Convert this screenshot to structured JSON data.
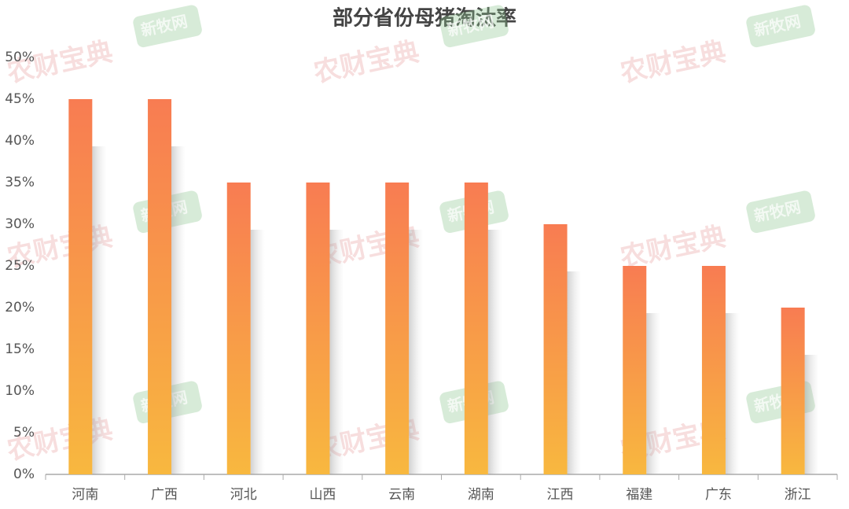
{
  "chart_data": {
    "type": "bar",
    "title": "部分省份母猪淘汰率",
    "categories": [
      "河南",
      "广西",
      "河北",
      "山西",
      "云南",
      "湖南",
      "江西",
      "福建",
      "广东",
      "浙江"
    ],
    "values": [
      45,
      45,
      35,
      35,
      35,
      35,
      30,
      25,
      25,
      20
    ],
    "gradient": [
      "#f87c52",
      "#f8b83f"
    ],
    "ylim": [
      0,
      50
    ],
    "yticks": [
      {
        "value": 0,
        "label": "0%"
      },
      {
        "value": 5,
        "label": "5%"
      },
      {
        "value": 10,
        "label": "10%"
      },
      {
        "value": 15,
        "label": "15%"
      },
      {
        "value": 20,
        "label": "20%"
      },
      {
        "value": 25,
        "label": "25%"
      },
      {
        "value": 30,
        "label": "30%"
      },
      {
        "value": 35,
        "label": "35%"
      },
      {
        "value": 40,
        "label": "40%"
      },
      {
        "value": 45,
        "label": "45%"
      },
      {
        "value": 50,
        "label": "50%"
      }
    ],
    "grid": false,
    "watermarks": [
      "农财宝典",
      "新牧网"
    ]
  }
}
